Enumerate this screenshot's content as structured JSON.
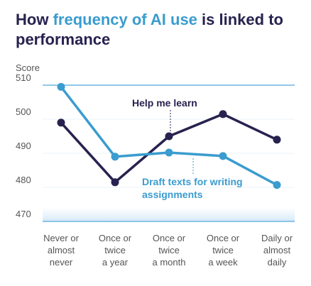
{
  "chart_data": {
    "type": "line",
    "title": {
      "before": "How",
      "highlight": "frequency of AI use",
      "after": "is linked to performance"
    },
    "y_label": "Score",
    "categories": [
      [
        "Never or",
        "almost",
        "never"
      ],
      [
        "Once or",
        "twice",
        "a year"
      ],
      [
        "Once or",
        "twice",
        "a month"
      ],
      [
        "Once or",
        "twice",
        "a week"
      ],
      [
        "Daily or",
        "almost",
        "daily"
      ]
    ],
    "series": [
      {
        "name": "Help me learn",
        "color": "#27224f",
        "values": [
          499,
          481.5,
          495,
          501.5,
          494
        ]
      },
      {
        "name": "Draft texts for writing assignments",
        "color": "#3a9ccf",
        "values": [
          509.5,
          489,
          490.2,
          489.2,
          480.7
        ]
      }
    ],
    "ylim": [
      470,
      510
    ],
    "yticks": [
      470,
      480,
      490,
      500,
      510
    ],
    "grid": true
  }
}
